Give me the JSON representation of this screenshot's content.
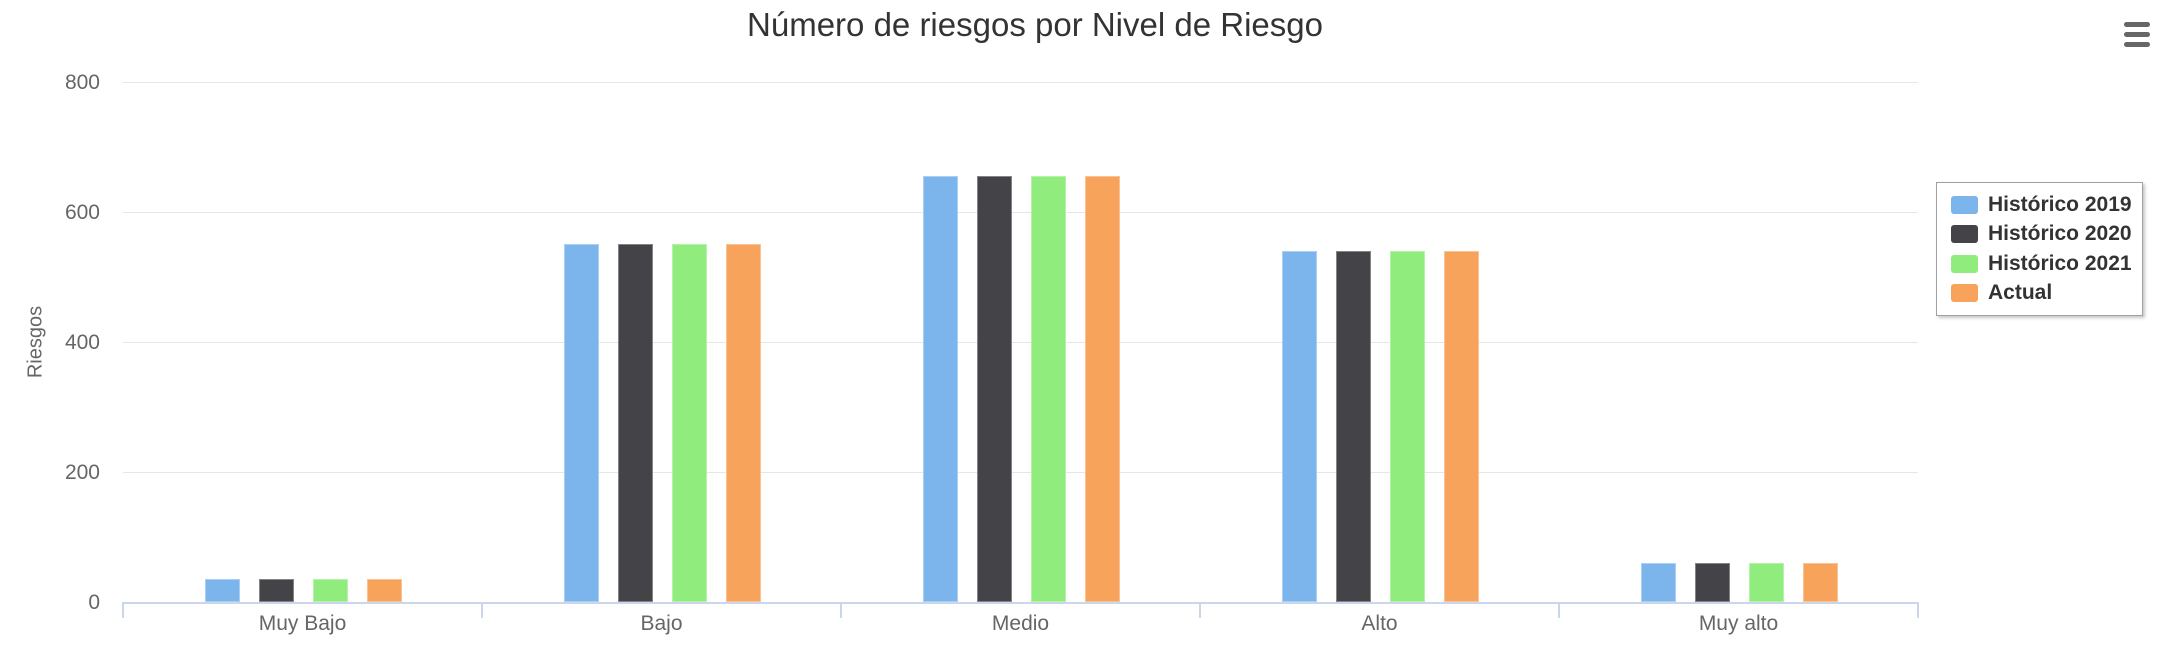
{
  "chart_data": {
    "type": "bar",
    "title": "Número de riesgos por Nivel de Riesgo",
    "xlabel": "",
    "ylabel": "Riesgos",
    "categories": [
      "Muy Bajo",
      "Bajo",
      "Medio",
      "Alto",
      "Muy alto"
    ],
    "series": [
      {
        "name": "Histórico 2019",
        "color": "#7cb5ec",
        "values": [
          35,
          550,
          655,
          540,
          60
        ]
      },
      {
        "name": "Histórico 2020",
        "color": "#434348",
        "values": [
          35,
          550,
          655,
          540,
          60
        ]
      },
      {
        "name": "Histórico 2021",
        "color": "#90ed7d",
        "values": [
          35,
          550,
          655,
          540,
          60
        ]
      },
      {
        "name": "Actual",
        "color": "#f7a35c",
        "values": [
          35,
          550,
          655,
          540,
          60
        ]
      }
    ],
    "ylim": [
      0,
      800
    ],
    "yticks": [
      0,
      200,
      400,
      600,
      800
    ],
    "grid": true,
    "legend_position": "right"
  },
  "icons": {
    "context_menu": "hamburger-icon"
  },
  "colors": {
    "title_text": "#333333",
    "axis_label_text": "#666666",
    "legend_text": "#333333",
    "gridline": "#e6e6e6",
    "axis_line": "#ccd6eb",
    "legend_border": "#a0a0a0",
    "menu_icon": "#666666"
  }
}
